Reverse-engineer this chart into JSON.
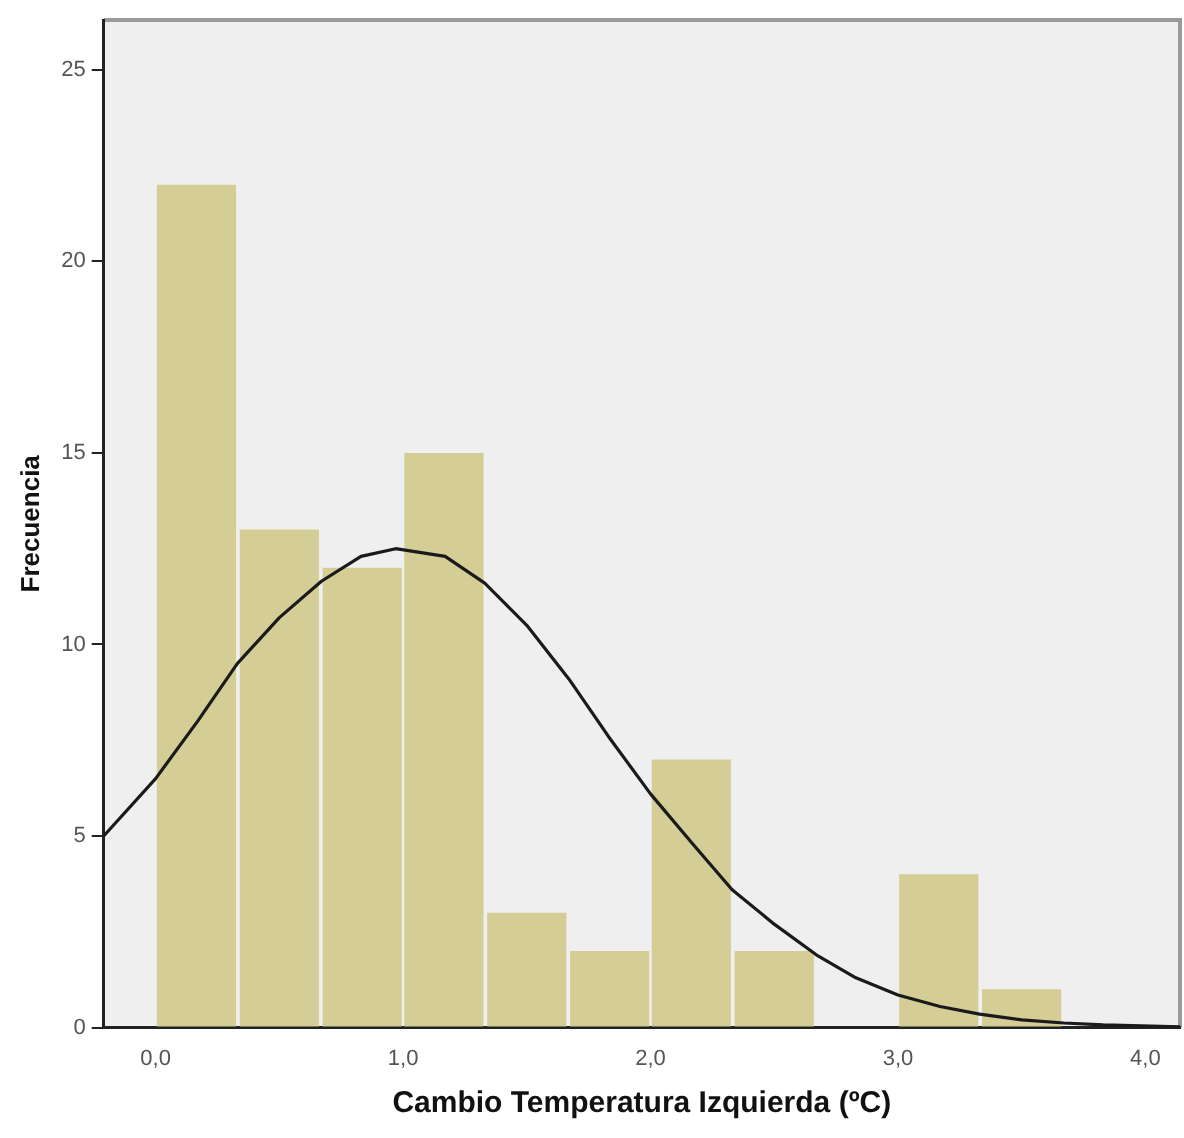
{
  "chart_data": {
    "type": "histogram",
    "xlabel": "Cambio Temperatura Izquierda (ºC)",
    "ylabel": "Frecuencia",
    "bins": [
      0,
      0.33,
      0.67,
      1.0,
      1.33,
      1.67,
      2.0,
      2.33,
      2.67,
      3.0,
      3.33,
      3.67
    ],
    "values": [
      22,
      13,
      12,
      15,
      3,
      2,
      7,
      2,
      0,
      4,
      1
    ],
    "color": "#d4cd96",
    "series": [
      {
        "type": "line",
        "color": "#1a1a1a",
        "x": [
          -0.21,
          0,
          0.17,
          0.33,
          0.5,
          0.67,
          0.83,
          0.97,
          1.17,
          1.33,
          1.5,
          1.67,
          1.83,
          2.0,
          2.17,
          2.33,
          2.5,
          2.67,
          2.83,
          3.0,
          3.17,
          3.33,
          3.5,
          3.67,
          3.83,
          4.14
        ],
        "values": [
          5.0,
          6.5,
          8.0,
          9.5,
          10.7,
          11.65,
          12.3,
          12.5,
          12.3,
          11.6,
          10.5,
          9.1,
          7.6,
          6.1,
          4.8,
          3.6,
          2.7,
          1.9,
          1.3,
          0.85,
          0.55,
          0.35,
          0.2,
          0.12,
          0.07,
          0.02
        ]
      }
    ],
    "xlim": [
      -0.21,
      4.14
    ],
    "ylim": [
      0,
      26.3
    ],
    "xticks": [
      {
        "value": 0,
        "label": "0,0"
      },
      {
        "value": 1,
        "label": "1,0"
      },
      {
        "value": 2,
        "label": "2,0"
      },
      {
        "value": 3,
        "label": "3,0"
      },
      {
        "value": 4,
        "label": "4,0"
      }
    ],
    "yticks": [
      0,
      5,
      10,
      15,
      20,
      25
    ],
    "grid": false,
    "legend": false,
    "marker": "none",
    "line_style": "solid"
  }
}
